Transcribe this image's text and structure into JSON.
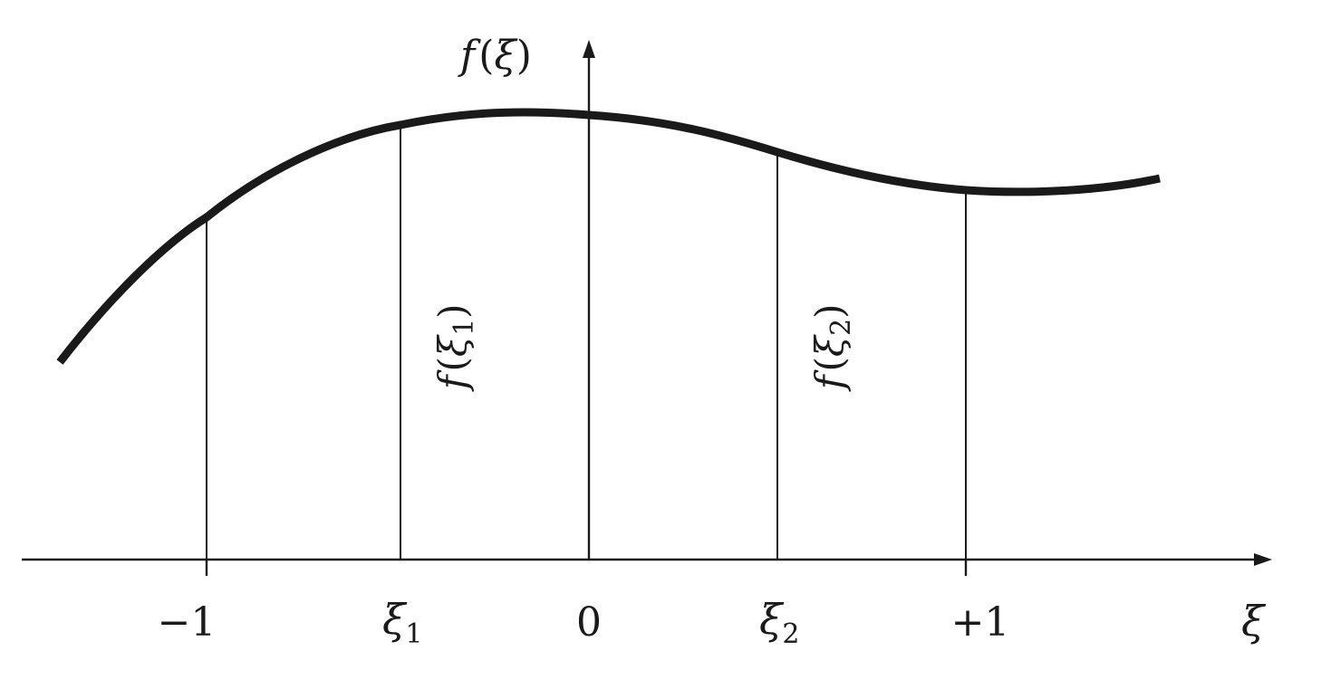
{
  "figure": {
    "curve_description": "smooth curve f(ξ) over ξ axis",
    "y_axis_label": {
      "func": "f",
      "open": "(",
      "var": "ξ",
      "close": ")"
    },
    "x_axis_label": "ξ",
    "ticks": [
      {
        "label": "−1"
      },
      {
        "label": "ξ",
        "sub": "1"
      },
      {
        "label": "0"
      },
      {
        "label": "ξ",
        "sub": "2"
      },
      {
        "label": "+1"
      }
    ],
    "ordinate_labels": [
      {
        "func": "f",
        "open": "(",
        "var": "ξ",
        "sub": "1",
        "close": ")"
      },
      {
        "func": "f",
        "open": "(",
        "var": "ξ",
        "sub": "2",
        "close": ")"
      }
    ],
    "colors": {
      "ink": "#1a1a1a",
      "background": "#ffffff"
    }
  }
}
